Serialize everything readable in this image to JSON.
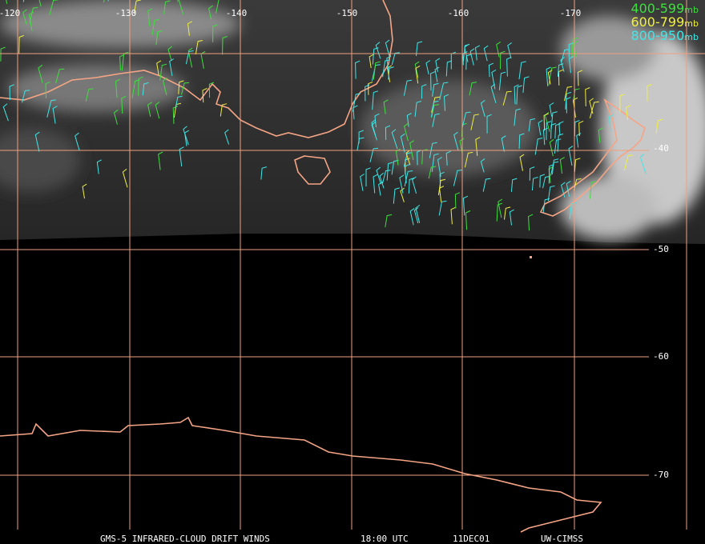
{
  "map": {
    "longitude_labels": [
      "-120",
      "-130",
      "-140",
      "-150",
      "-160",
      "-170"
    ],
    "latitude_labels": [
      "-40",
      "-50",
      "-60",
      "-70"
    ],
    "legend": [
      {
        "label": "400-599",
        "unit": "mb",
        "color": "#3ee03e"
      },
      {
        "label": "600-799",
        "unit": "mb",
        "color": "#f0f040"
      },
      {
        "label": "800-950",
        "unit": "mb",
        "color": "#40e8e8"
      }
    ],
    "footer": [
      "GMS-5 INFRARED-CLOUD DRIFT WINDS",
      "18:00 UTC",
      "11DEC01",
      "UW-CIMSS"
    ]
  }
}
